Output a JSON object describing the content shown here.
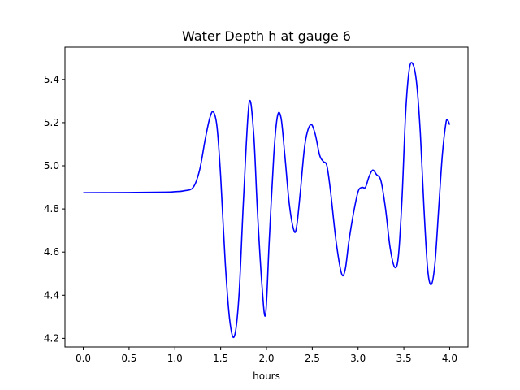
{
  "chart_data": {
    "type": "line",
    "title": "Water Depth h at gauge 6",
    "xlabel": "hours",
    "ylabel": "",
    "xlim": [
      -0.2,
      4.2
    ],
    "ylim": [
      4.16,
      5.55
    ],
    "xticks": [
      "0.0",
      "0.5",
      "1.0",
      "1.5",
      "2.0",
      "2.5",
      "3.0",
      "3.5",
      "4.0"
    ],
    "yticks": [
      "4.2",
      "4.4",
      "4.6",
      "4.8",
      "5.0",
      "5.2",
      "5.4"
    ],
    "grid": false,
    "line_color": "#0000ff",
    "series": [
      {
        "x": [
          0.0,
          0.5,
          0.9,
          1.0,
          1.1,
          1.2,
          1.27,
          1.33,
          1.38,
          1.42,
          1.46,
          1.5,
          1.55,
          1.6,
          1.65,
          1.7,
          1.75,
          1.81,
          1.86,
          1.9,
          1.95,
          1.99,
          2.03,
          2.08,
          2.12,
          2.16,
          2.2,
          2.25,
          2.3,
          2.33,
          2.37,
          2.42,
          2.48,
          2.53,
          2.58,
          2.62,
          2.66,
          2.7,
          2.76,
          2.82,
          2.86,
          2.9,
          2.95,
          3.0,
          3.04,
          3.08,
          3.12,
          3.16,
          3.2,
          3.25,
          3.3,
          3.35,
          3.4,
          3.44,
          3.48,
          3.52,
          3.56,
          3.6,
          3.64,
          3.68,
          3.72,
          3.76,
          3.8,
          3.84,
          3.88,
          3.92,
          3.96,
          3.98,
          4.0
        ],
        "y": [
          4.875,
          4.876,
          4.878,
          4.88,
          4.884,
          4.9,
          4.98,
          5.12,
          5.22,
          5.25,
          5.18,
          4.95,
          4.55,
          4.28,
          4.21,
          4.4,
          4.85,
          5.29,
          5.15,
          4.8,
          4.45,
          4.31,
          4.65,
          5.05,
          5.23,
          5.22,
          5.05,
          4.82,
          4.7,
          4.72,
          4.88,
          5.1,
          5.19,
          5.15,
          5.05,
          5.02,
          5.0,
          4.88,
          4.65,
          4.5,
          4.52,
          4.65,
          4.78,
          4.88,
          4.9,
          4.9,
          4.95,
          4.98,
          4.96,
          4.93,
          4.8,
          4.62,
          4.53,
          4.58,
          4.85,
          5.25,
          5.45,
          5.47,
          5.38,
          5.15,
          4.8,
          4.52,
          4.45,
          4.55,
          4.8,
          5.05,
          5.2,
          5.21,
          5.19
        ]
      }
    ]
  }
}
